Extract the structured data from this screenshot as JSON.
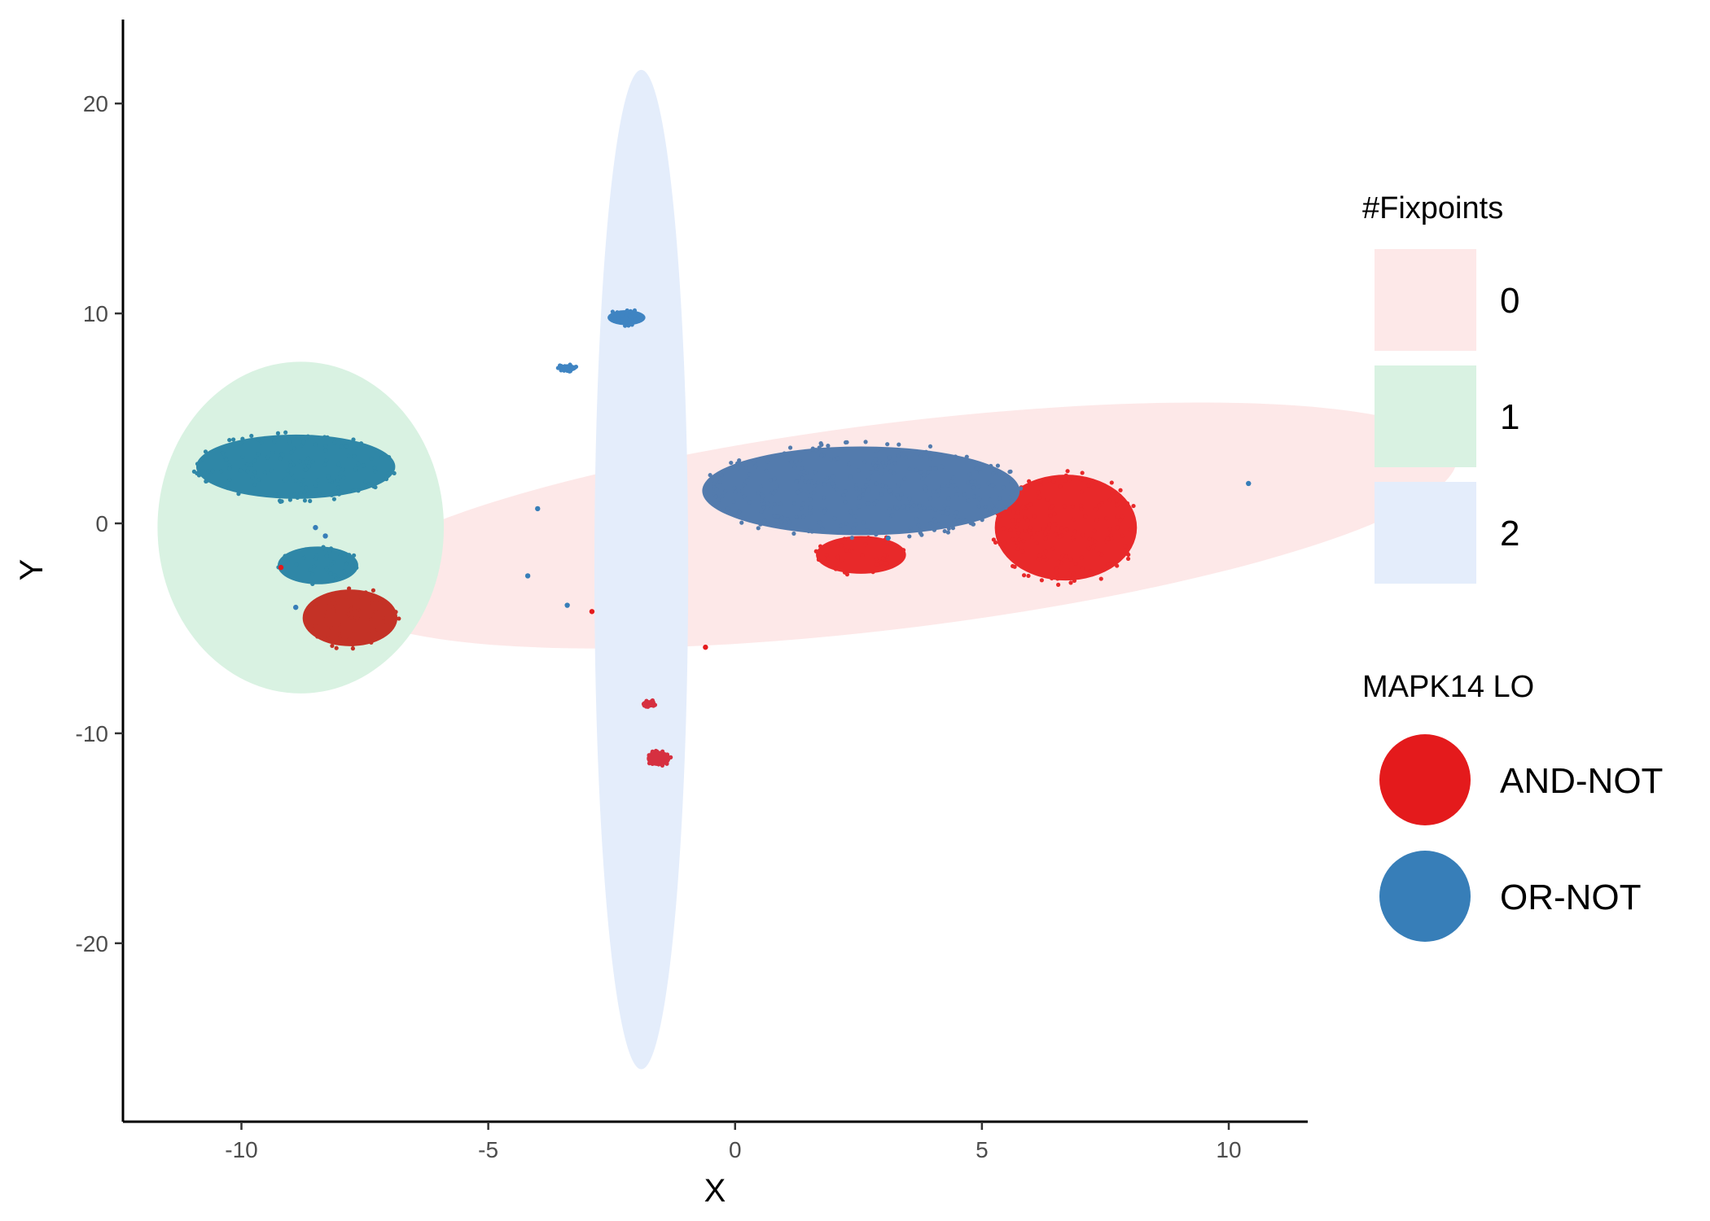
{
  "chart_data": {
    "type": "scatter",
    "title": "",
    "xlabel": "X",
    "ylabel": "Y",
    "xlim": [
      -12.4,
      11.6
    ],
    "ylim": [
      -28.5,
      24
    ],
    "x_ticks": [
      -10,
      -5,
      0,
      5,
      10
    ],
    "x_tick_labels": [
      "-10",
      "-5",
      "0",
      "5",
      "10"
    ],
    "y_ticks": [
      -20,
      -10,
      0,
      10,
      20
    ],
    "y_tick_labels": [
      "-20",
      "-10",
      "0",
      "10",
      "20"
    ],
    "grid": false,
    "ellipses": {
      "title": "#Fixpoints",
      "groups": [
        {
          "label": "0",
          "color": "#fde8e8",
          "center": [
            3.3,
            -0.1
          ],
          "rx": 11.4,
          "ry": 4.9,
          "angle_deg": -7
        },
        {
          "label": "1",
          "color": "#d9f2e2",
          "center": [
            -8.8,
            -0.2
          ],
          "rx": 2.9,
          "ry": 7.9,
          "angle_deg": 0
        },
        {
          "label": "2",
          "color": "#e4edfb",
          "center": [
            -1.9,
            -2.2
          ],
          "rx": 0.95,
          "ry": 23.8,
          "angle_deg": 0
        }
      ]
    },
    "series": [
      {
        "name": "AND-NOT",
        "color": "#e41a1c",
        "clusters": [
          {
            "x": [
              5.2,
              8.2
            ],
            "y": [
              -3.0,
              2.6
            ],
            "note_color": "#e8292a"
          },
          {
            "x": [
              1.6,
              3.5
            ],
            "y": [
              -2.5,
              -0.5
            ],
            "note_color": "#e8292a"
          },
          {
            "x": [
              -8.8,
              -6.8
            ],
            "y": [
              -6.0,
              -3.0
            ],
            "note_color": "#c43226"
          },
          {
            "x": [
              -1.9,
              -1.6
            ],
            "y": [
              -8.8,
              -8.4
            ],
            "note_color": "#d63040"
          },
          {
            "x": [
              -1.8,
              -1.3
            ],
            "y": [
              -11.6,
              -10.8
            ],
            "note_color": "#d63040"
          }
        ],
        "points": [
          [
            -2.9,
            -4.2
          ],
          [
            -0.6,
            -5.9
          ],
          [
            -9.2,
            -2.1
          ]
        ]
      },
      {
        "name": "OR-NOT",
        "color": "#377eb8",
        "clusters": [
          {
            "x": [
              -11.0,
              -6.8
            ],
            "y": [
              1.0,
              4.4
            ],
            "note_color": "#2f87a7"
          },
          {
            "x": [
              -9.3,
              -7.6
            ],
            "y": [
              -3.0,
              -1.0
            ],
            "note_color": "#2f87a7"
          },
          {
            "x": [
              -0.8,
              5.9
            ],
            "y": [
              -0.8,
              3.9
            ],
            "note_color": "#537bad"
          },
          {
            "x": [
              -2.6,
              -1.8
            ],
            "y": [
              9.4,
              10.2
            ],
            "note_color": "#3f84c2"
          },
          {
            "x": [
              -3.6,
              -3.2
            ],
            "y": [
              7.2,
              7.6
            ],
            "note_color": "#3f84c2"
          }
        ],
        "points": [
          [
            10.4,
            1.9
          ],
          [
            -4.0,
            0.7
          ],
          [
            -4.2,
            -2.5
          ],
          [
            -3.4,
            -3.9
          ],
          [
            -8.9,
            -4.0
          ],
          [
            3.1,
            -0.7
          ],
          [
            -8.5,
            -0.2
          ],
          [
            -8.3,
            -0.6
          ]
        ]
      }
    ],
    "legends": [
      {
        "title": "#Fixpoints",
        "entries": [
          "0",
          "1",
          "2"
        ]
      },
      {
        "title": "MAPK14 LO",
        "entries": [
          "AND-NOT",
          "OR-NOT"
        ]
      }
    ]
  }
}
